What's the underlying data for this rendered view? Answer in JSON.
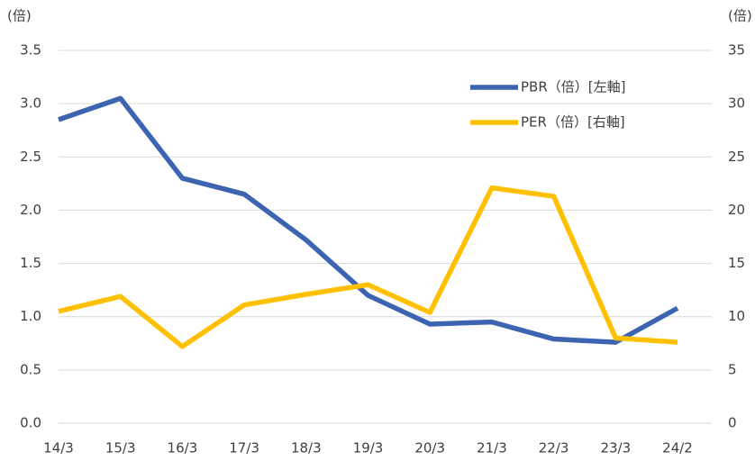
{
  "chart_data": {
    "type": "line",
    "y_label": "(倍)",
    "y2_label": "(倍)",
    "categories": [
      "14/3",
      "15/3",
      "16/3",
      "17/3",
      "18/3",
      "19/3",
      "20/3",
      "21/3",
      "22/3",
      "23/3",
      "24/2"
    ],
    "series": [
      {
        "name": "PBR（倍）[左軸]",
        "color": "#3c64b1",
        "values": [
          2.85,
          3.05,
          2.3,
          2.15,
          1.72,
          1.2,
          0.93,
          0.95,
          0.79,
          0.76,
          1.08
        ]
      },
      {
        "name": "PER（倍）[右軸]",
        "color": "#ffc000",
        "axis": "y2",
        "values": [
          10.5,
          11.9,
          7.2,
          11.1,
          12.1,
          13.0,
          10.4,
          22.1,
          21.3,
          8.0,
          7.6
        ]
      }
    ],
    "ylim": [
      0,
      3.5
    ],
    "yticks": [
      {
        "value": 0,
        "label": "0.0"
      },
      0.5,
      {
        "value": 1,
        "label": "1.0"
      },
      1.5,
      {
        "value": 2,
        "label": "2.0"
      },
      2.5,
      {
        "value": 3,
        "label": "3.0"
      },
      3.5
    ],
    "y2lim": [
      0,
      35
    ],
    "y2ticks": [
      0,
      5,
      10,
      15,
      20,
      25,
      30,
      35
    ],
    "grid": true
  }
}
